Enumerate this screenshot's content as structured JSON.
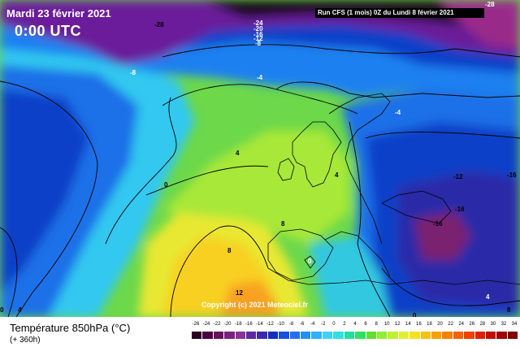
{
  "header": {
    "date": "Mardi 23 février 2021",
    "time": "0:00 UTC",
    "run": "Run CFS (1 mois) 0Z du Lundi 8 février 2021"
  },
  "footer": {
    "variable": "Température 850hPa (°C)",
    "lead": "(+ 360h)"
  },
  "copyright": "Copyright (c) 2021 Meteociel.fr",
  "contour_labels": [
    "-28",
    "-24",
    "-20",
    "-16",
    "-12",
    "-8",
    "-28",
    "-8",
    "-4",
    "-4",
    "4",
    "0",
    "0",
    "4",
    "8",
    "8",
    "12",
    "0",
    "-12",
    "-16",
    "-16",
    "-16",
    "0",
    "4",
    "8",
    "4"
  ],
  "scale": {
    "ticks": [
      "-26",
      "-24",
      "-22",
      "-20",
      "-18",
      "-16",
      "-14",
      "-12",
      "-10",
      "-8",
      "-6",
      "-4",
      "-2",
      "0",
      "2",
      "4",
      "6",
      "8",
      "10",
      "12",
      "14",
      "16",
      "18",
      "20",
      "22",
      "24",
      "26",
      "28",
      "30",
      "32",
      "34"
    ],
    "colors": [
      "#2a0020",
      "#4a0040",
      "#6a1060",
      "#7a2080",
      "#8a30a0",
      "#5a2aa0",
      "#3a2ab0",
      "#1030c0",
      "#1a50e0",
      "#2070f0",
      "#2090f8",
      "#30b0ff",
      "#40d0ff",
      "#30e0e0",
      "#20e0a0",
      "#30e060",
      "#60e030",
      "#90f030",
      "#c0f030",
      "#e0f030",
      "#f8e020",
      "#f8c010",
      "#f8a000",
      "#f88000",
      "#f86000",
      "#f04000",
      "#e02000",
      "#c01000",
      "#a00000",
      "#800000"
    ]
  }
}
